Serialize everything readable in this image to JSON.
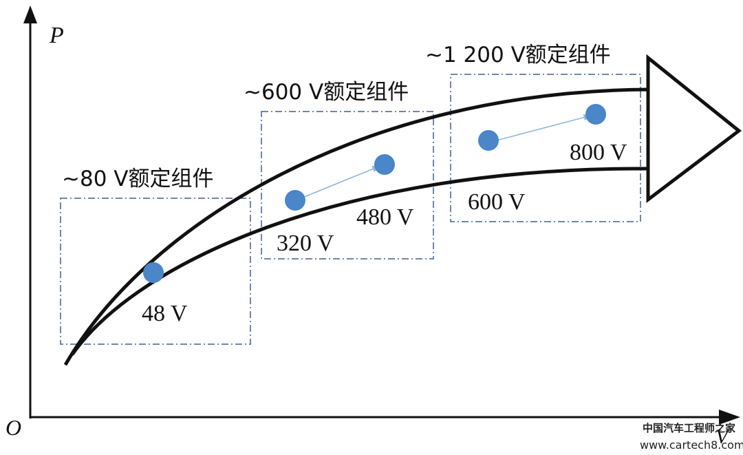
{
  "axes": {
    "y_label": "P",
    "origin_label": "O",
    "x_label": "V"
  },
  "groups": [
    {
      "label": "~80 V额定组件"
    },
    {
      "label": "~600 V额定组件"
    },
    {
      "label": "~1 200 V额定组件"
    }
  ],
  "points": [
    {
      "label": "48 V"
    },
    {
      "label": "320 V"
    },
    {
      "label": "480 V"
    },
    {
      "label": "600 V"
    },
    {
      "label": "800 V"
    }
  ],
  "watermark": {
    "line1": "中国汽车工程师之家",
    "line2": "www.cartech8.com"
  },
  "colors": {
    "dot": "#4a86c8",
    "box": "#6f87a8",
    "link": "#8fb4dc",
    "ink": "#111111"
  }
}
